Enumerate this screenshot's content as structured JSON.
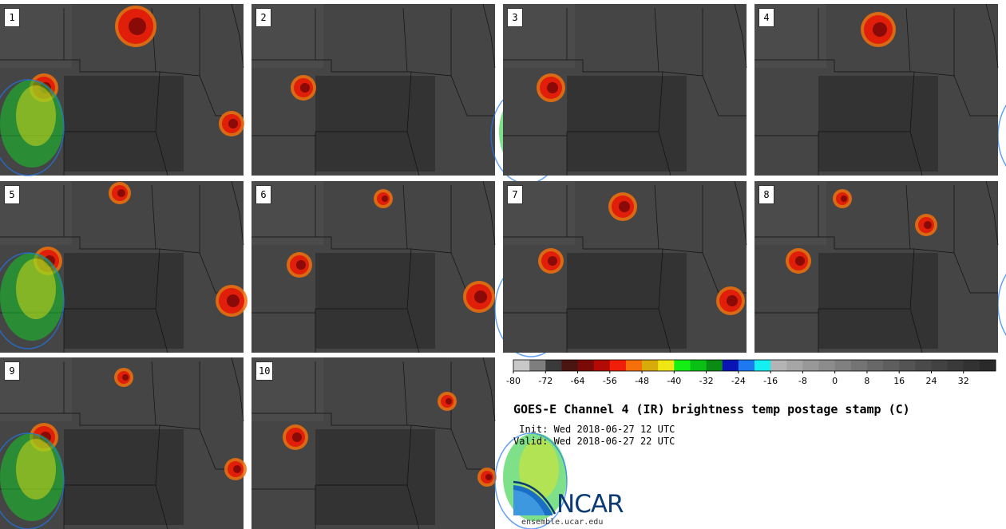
{
  "panels": [
    {
      "label": "1"
    },
    {
      "label": "2"
    },
    {
      "label": "3"
    },
    {
      "label": "4"
    },
    {
      "label": "5"
    },
    {
      "label": "6"
    },
    {
      "label": "7"
    },
    {
      "label": "8"
    },
    {
      "label": "9"
    },
    {
      "label": "10"
    }
  ],
  "colorbar": {
    "min": -80,
    "max": 40,
    "step": 4,
    "tick_labels": [
      "-80",
      "-72",
      "-64",
      "-56",
      "-48",
      "-40",
      "-32",
      "-24",
      "-16",
      "-8",
      "0",
      "8",
      "16",
      "24",
      "32"
    ],
    "colors": [
      "#c8c8c8",
      "#7e7e7e",
      "#3a3a3a",
      "#4a1410",
      "#7a0a08",
      "#b20a05",
      "#f01e0a",
      "#f5700a",
      "#d8aa0a",
      "#f0e614",
      "#14f014",
      "#0ac014",
      "#0a8c14",
      "#0a14b4",
      "#1e78f0",
      "#14f0f0",
      "#b4b4b4",
      "#a6a6a6",
      "#989898",
      "#8c8c8c",
      "#808080",
      "#747474",
      "#686868",
      "#5e5e5e",
      "#545454",
      "#4a4a4a",
      "#424242",
      "#3a3a3a",
      "#323232",
      "#2a2a2a"
    ]
  },
  "title": "GOES-E Channel 4 (IR) brightness temp postage stamp (C)",
  "init": " Init: Wed 2018-06-27 12 UTC",
  "valid": "Valid: Wed 2018-06-27 22 UTC",
  "logo": {
    "text": "NCAR",
    "url": "ensemble.ucar.edu"
  }
}
